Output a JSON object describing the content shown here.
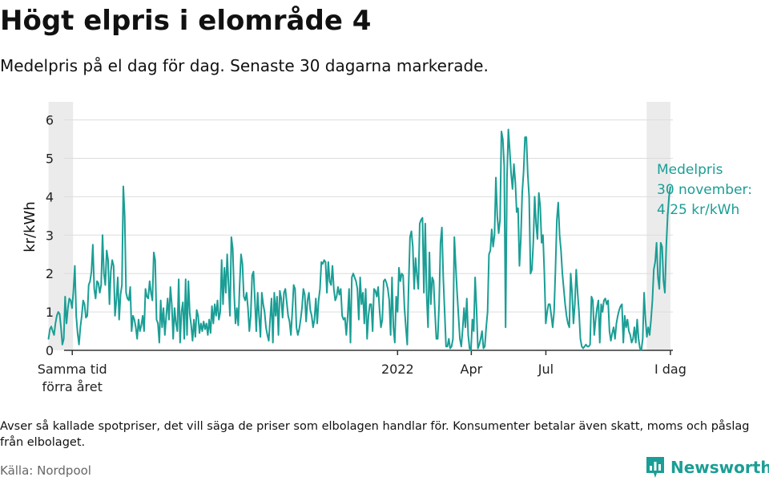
{
  "title": "Högt elpris i elområde 4",
  "subtitle": "Medelpris på el dag för dag.  Senaste 30 dagarna markerade.",
  "annotation": [
    "Medelpris",
    "30 november:",
    "4,25 kr/kWh"
  ],
  "note": "Avser så kallade spotpriser, det vill säga de priser som elbolagen handlar för. Konsumenter betalar även skatt, moms och påslag från elbolaget.",
  "source": "Källa: Nordpool",
  "brand": {
    "name": "Newsworthy",
    "icon": "bar-chart-icon"
  },
  "colors": {
    "line": "#1a9e95",
    "highlight": "#ebebeb",
    "grid": "#dddddd",
    "axis": "#333333"
  },
  "chart_data": {
    "type": "line",
    "title": "Högt elpris i elområde 4",
    "xlabel": "",
    "ylabel": "kr/kWh",
    "ylim": [
      0,
      6.2
    ],
    "yticks": [
      0,
      1,
      2,
      3,
      4,
      5,
      6
    ],
    "xlim": [
      "2020-11-20",
      "2022-12-03"
    ],
    "grid": true,
    "legend": "none",
    "x_ticks": [
      {
        "date": "2020-11-30",
        "label": [
          "Samma tid",
          "förra året"
        ]
      },
      {
        "date": "2022-01-01",
        "label": [
          "2022"
        ]
      },
      {
        "date": "2022-04-01",
        "label": [
          "Apr"
        ]
      },
      {
        "date": "2022-07-01",
        "label": [
          "Jul"
        ]
      },
      {
        "date": "2022-11-30",
        "label": [
          "I dag"
        ]
      }
    ],
    "highlight_ranges": [
      {
        "start": "2020-11-01",
        "end": "2020-12-01"
      },
      {
        "start": "2022-11-01",
        "end": "2022-11-30"
      }
    ],
    "series": [
      {
        "start": "2020-11-01",
        "end": "2022-11-30",
        "values": [
          0.3,
          0.55,
          0.62,
          0.5,
          0.4,
          0.7,
          0.9,
          1.0,
          0.95,
          0.6,
          0.15,
          0.3,
          1.4,
          0.7,
          1.1,
          1.35,
          1.3,
          1.1,
          1.55,
          2.2,
          0.9,
          0.45,
          0.15,
          0.6,
          0.9,
          1.3,
          1.2,
          0.85,
          0.9,
          1.7,
          1.8,
          2.05,
          2.75,
          1.6,
          1.35,
          1.8,
          1.75,
          1.5,
          1.7,
          3.0,
          2.0,
          1.7,
          2.6,
          2.35,
          1.2,
          2.05,
          2.35,
          2.2,
          0.9,
          1.3,
          1.9,
          0.8,
          1.45,
          1.7,
          4.27,
          3.5,
          1.5,
          1.35,
          1.3,
          1.65,
          0.5,
          0.9,
          0.8,
          0.6,
          0.3,
          0.8,
          0.5,
          0.65,
          0.9,
          0.5,
          1.6,
          1.4,
          1.35,
          1.8,
          1.5,
          1.3,
          2.55,
          2.35,
          0.8,
          0.7,
          0.2,
          1.3,
          0.6,
          1.1,
          0.4,
          0.9,
          1.35,
          0.8,
          1.65,
          1.2,
          0.3,
          1.1,
          0.7,
          0.5,
          1.85,
          0.2,
          1.0,
          1.25,
          0.3,
          1.85,
          0.4,
          1.8,
          0.95,
          0.65,
          0.25,
          0.8,
          0.35,
          1.05,
          0.9,
          0.45,
          0.7,
          0.5,
          0.75,
          0.55,
          0.7,
          0.4,
          0.8,
          0.45,
          1.15,
          0.7,
          1.2,
          0.9,
          1.3,
          0.8,
          1.0,
          2.35,
          1.2,
          2.15,
          1.5,
          2.5,
          1.7,
          0.9,
          2.95,
          2.65,
          1.5,
          0.7,
          1.1,
          0.65,
          1.7,
          2.5,
          2.25,
          1.4,
          1.3,
          1.5,
          1.1,
          0.5,
          0.9,
          1.95,
          2.05,
          1.3,
          0.5,
          1.5,
          0.9,
          0.35,
          1.5,
          1.2,
          1.0,
          0.6,
          0.4,
          0.25,
          0.8,
          1.35,
          0.2,
          1.5,
          0.9,
          1.4,
          0.4,
          1.55,
          1.35,
          0.85,
          1.5,
          1.6,
          1.25,
          0.9,
          0.75,
          0.4,
          1.0,
          1.7,
          1.6,
          0.6,
          0.4,
          0.55,
          0.8,
          1.1,
          1.6,
          1.45,
          0.75,
          1.3,
          1.5,
          1.05,
          0.9,
          0.6,
          0.8,
          1.35,
          0.7,
          1.3,
          1.6,
          2.3,
          2.25,
          2.35,
          2.3,
          1.5,
          2.3,
          1.8,
          1.7,
          2.2,
          1.6,
          1.3,
          1.4,
          1.65,
          1.45,
          1.6,
          0.9,
          0.8,
          0.85,
          0.4,
          0.9,
          1.6,
          0.2,
          1.9,
          2.0,
          1.9,
          1.8,
          1.6,
          0.8,
          1.9,
          1.2,
          1.5,
          0.7,
          1.6,
          0.3,
          0.9,
          1.2,
          1.2,
          0.5,
          1.6,
          1.55,
          1.4,
          1.65,
          1.05,
          0.6,
          0.8,
          1.8,
          1.85,
          1.75,
          1.6,
          1.3,
          0.4,
          1.9,
          0.6,
          0.2,
          1.4,
          1.0,
          2.15,
          1.8,
          2.0,
          1.95,
          1.1,
          0.6,
          0.15,
          1.7,
          2.95,
          3.1,
          2.7,
          1.6,
          2.4,
          1.95,
          1.6,
          3.3,
          3.4,
          3.45,
          1.5,
          3.3,
          1.45,
          0.6,
          2.55,
          1.2,
          1.9,
          1.8,
          1.0,
          0.3,
          0.3,
          1.2,
          2.8,
          3.2,
          1.9,
          1.0,
          0.1,
          0.1,
          0.3,
          0.05,
          0.1,
          0.3,
          2.95,
          2.2,
          1.5,
          0.9,
          0.3,
          0.1,
          0.55,
          1.1,
          0.6,
          1.35,
          0.4,
          0.05,
          0.0,
          0.8,
          0.5,
          1.9,
          1.1,
          0.05,
          0.15,
          0.3,
          0.5,
          0.05,
          0.1,
          0.6,
          1.0,
          2.5,
          2.6,
          3.15,
          2.7,
          3.0,
          4.5,
          3.5,
          3.05,
          3.4,
          5.7,
          5.5,
          4.8,
          0.6,
          4.5,
          5.75,
          5.2,
          4.6,
          4.2,
          4.85,
          4.4,
          3.6,
          3.7,
          2.2,
          2.9,
          4.1,
          4.65,
          5.55,
          5.55,
          4.6,
          4.0,
          2.0,
          2.1,
          2.8,
          4.0,
          3.3,
          2.9,
          4.1,
          3.75,
          2.8,
          3.0,
          2.0,
          0.7,
          1.0,
          1.2,
          1.2,
          0.9,
          0.6,
          1.0,
          2.1,
          3.4,
          3.85,
          3.0,
          2.6,
          2.0,
          1.6,
          1.2,
          0.9,
          0.7,
          0.6,
          2.0,
          1.5,
          0.7,
          1.2,
          2.1,
          1.5,
          1.0,
          0.3,
          0.1,
          0.05,
          0.1,
          0.15,
          0.1,
          0.1,
          0.15,
          1.4,
          1.3,
          0.4,
          0.8,
          1.1,
          1.3,
          0.2,
          1.2,
          1.0,
          1.3,
          1.35,
          1.2,
          1.3,
          0.5,
          0.25,
          0.45,
          0.6,
          0.3,
          0.7,
          0.9,
          1.05,
          1.15,
          1.2,
          0.2,
          0.9,
          0.6,
          0.8,
          0.5,
          0.4,
          0.2,
          0.3,
          0.6,
          0.2,
          0.8,
          0.3,
          0.05,
          0.0,
          0.3,
          1.5,
          0.8,
          0.35,
          0.6,
          0.4,
          0.8,
          1.3,
          2.1,
          2.3,
          2.8,
          1.9,
          1.6,
          2.8,
          2.7,
          1.8,
          1.5,
          2.7,
          3.5,
          4.0,
          4.25
        ]
      }
    ]
  }
}
